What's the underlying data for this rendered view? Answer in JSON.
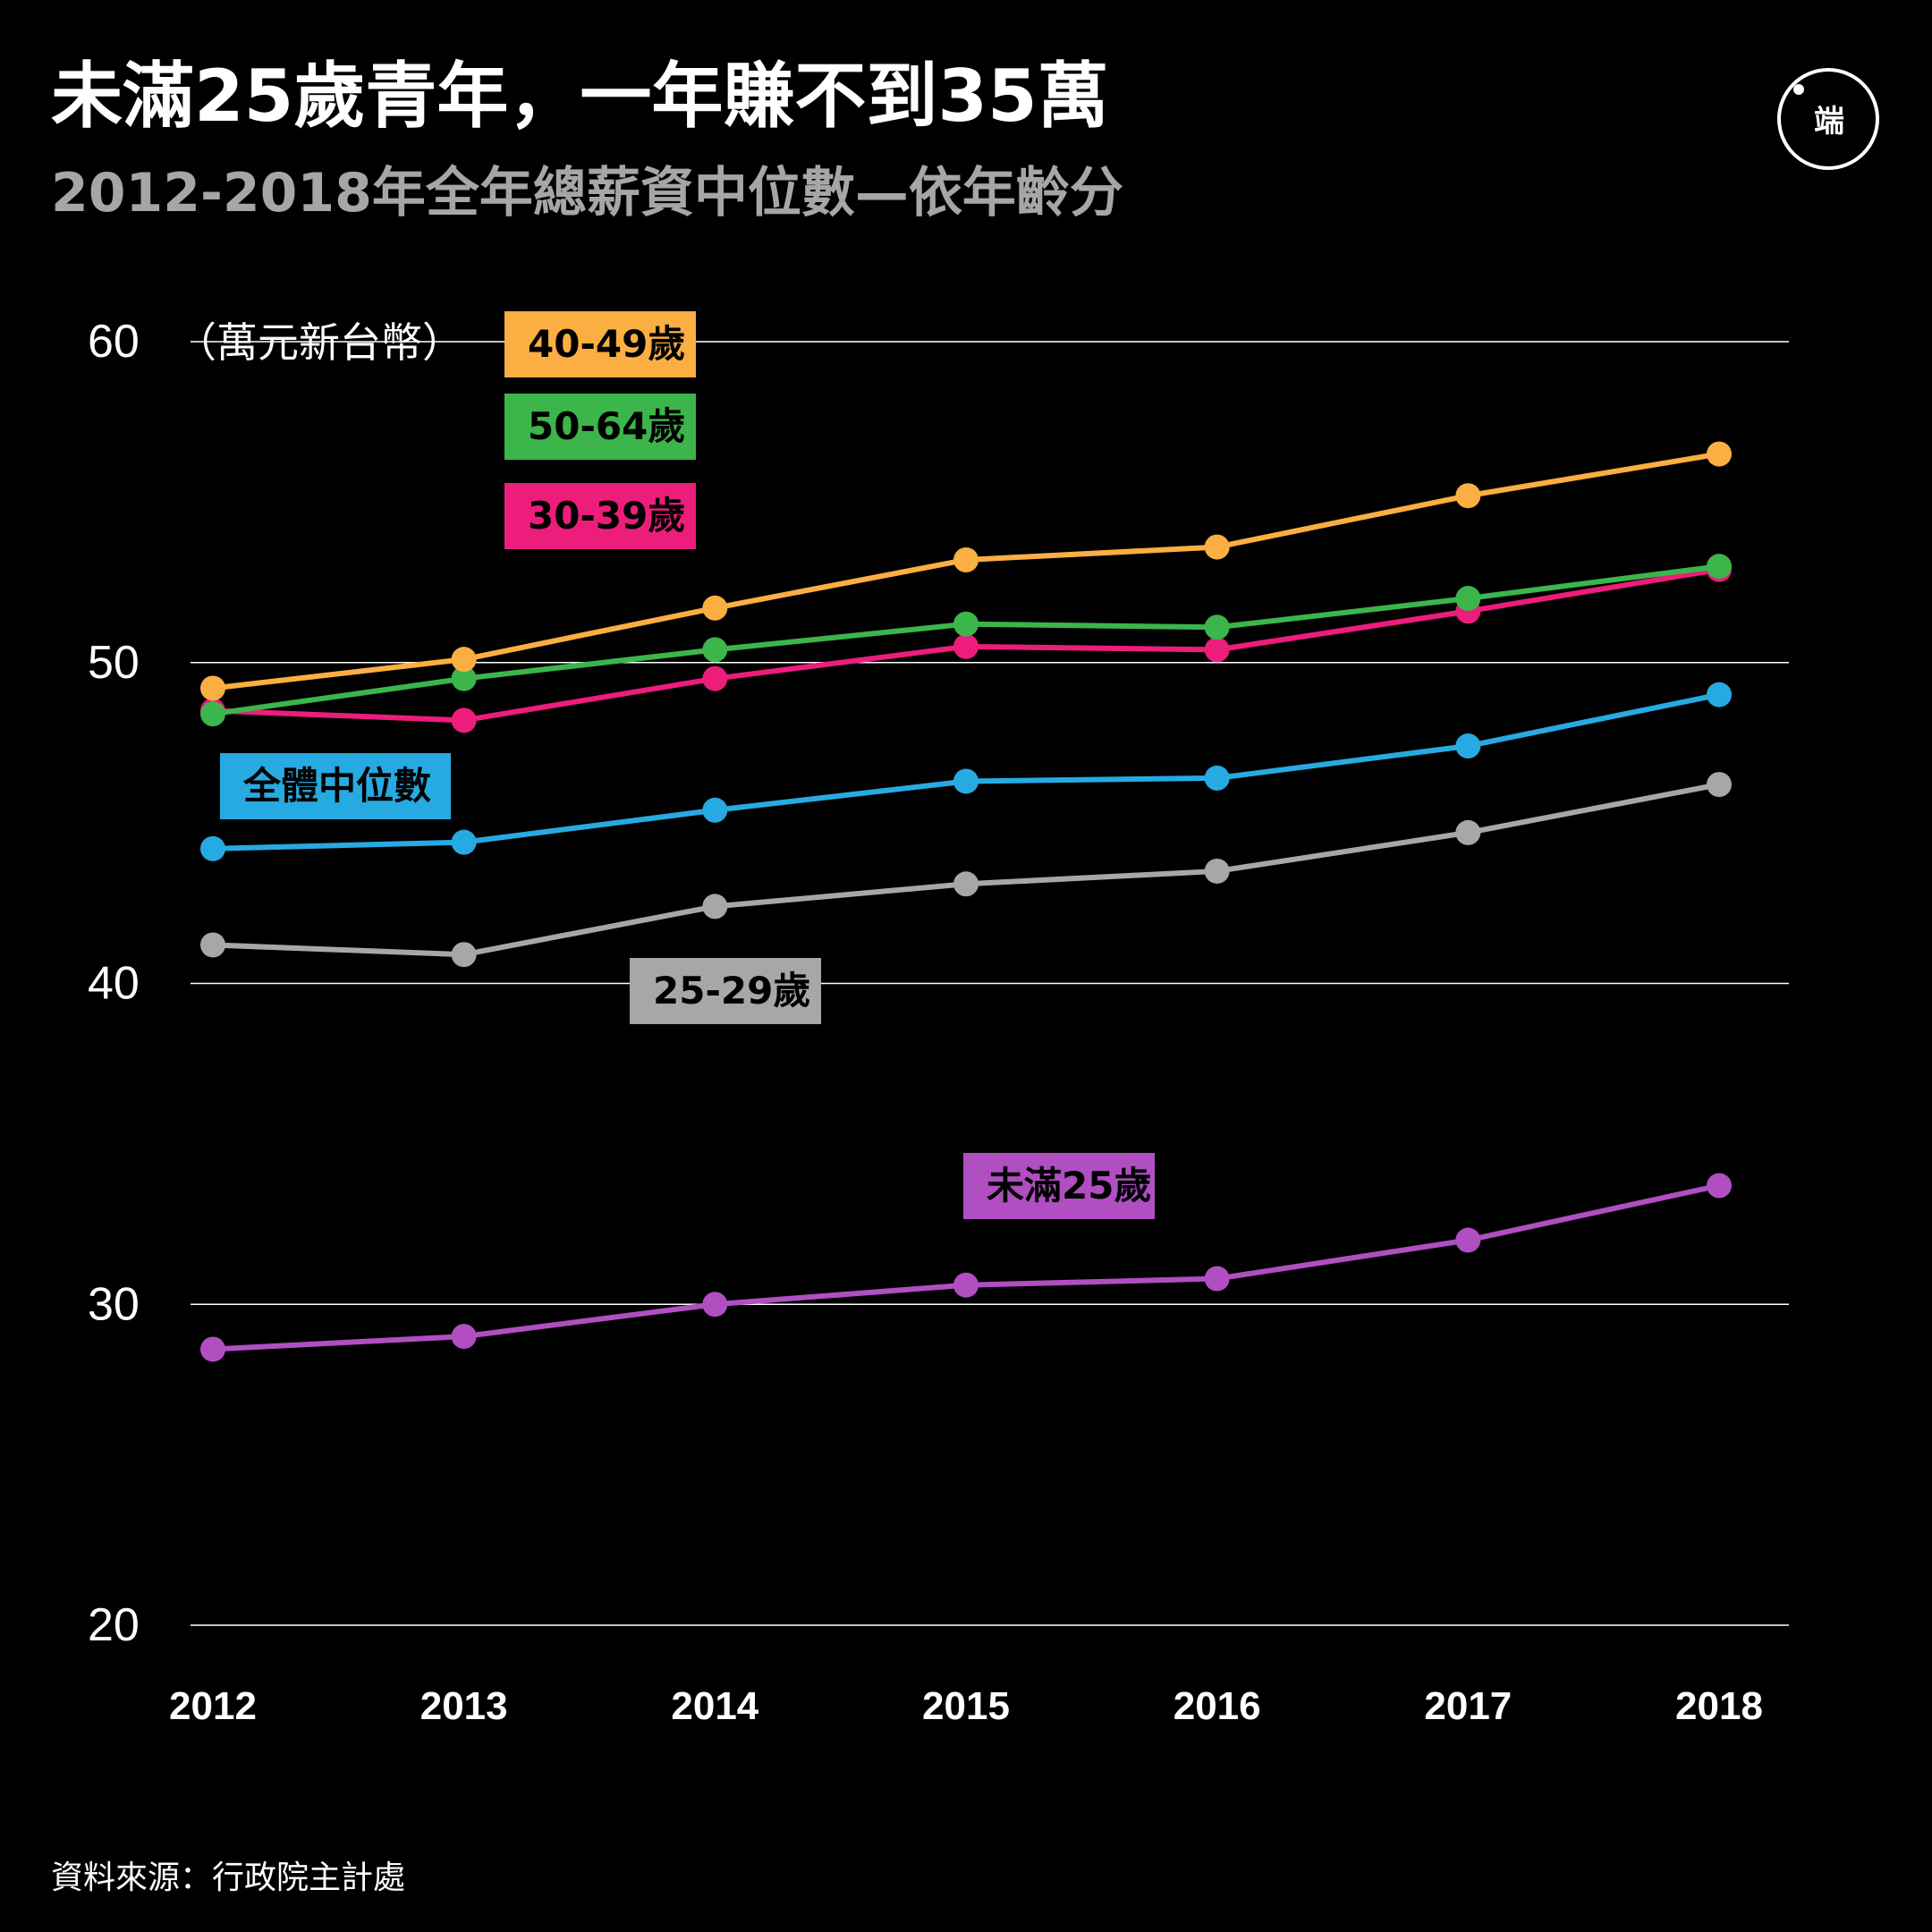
{
  "header": {
    "title": "未滿25歲青年，一年賺不到35萬",
    "subtitle": "2012-2018年全年總薪資中位數—依年齡分",
    "logo_text": "端"
  },
  "footer": {
    "source": "資料來源：行政院主計處"
  },
  "chart_data": {
    "type": "line",
    "unit": "（萬元新台幣）",
    "categories": [
      "2012",
      "2013",
      "2014",
      "2015",
      "2016",
      "2017",
      "2018"
    ],
    "ylim": [
      20,
      60
    ],
    "yticks": [
      60,
      50,
      40,
      30,
      20
    ],
    "grid": true,
    "series": [
      {
        "name": "40-49歲",
        "color": "#fbae42",
        "values": [
          49.2,
          50.1,
          51.7,
          53.2,
          53.6,
          55.2,
          56.5
        ]
      },
      {
        "name": "50-64歲",
        "color": "#3cb54a",
        "values": [
          48.4,
          49.5,
          50.4,
          51.2,
          51.1,
          52.0,
          53.0
        ]
      },
      {
        "name": "30-39歲",
        "color": "#ec1d7b",
        "values": [
          48.5,
          48.2,
          49.5,
          50.5,
          50.4,
          51.6,
          52.9
        ]
      },
      {
        "name": "全體中位數",
        "color": "#27aae1",
        "values": [
          44.2,
          44.4,
          45.4,
          46.3,
          46.4,
          47.4,
          49.0
        ]
      },
      {
        "name": "25-29歲",
        "color": "#a7a7a7",
        "values": [
          41.2,
          40.9,
          42.4,
          43.1,
          43.5,
          44.7,
          46.2
        ]
      },
      {
        "name": "未滿25歲",
        "color": "#b04ec2",
        "values": [
          28.6,
          29.0,
          30.0,
          30.6,
          30.8,
          32.0,
          33.7
        ]
      }
    ]
  }
}
